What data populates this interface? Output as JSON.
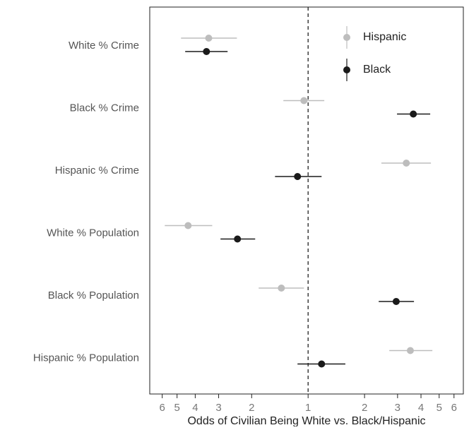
{
  "chart_data": {
    "type": "dot-whisker",
    "categories": [
      "White % Crime",
      "Black % Crime",
      "Hispanic % Crime",
      "White % Population",
      "Black % Population",
      "Hispanic % Population"
    ],
    "series": [
      {
        "name": "Hispanic",
        "color": "#bdbdbd",
        "values": [
          0.295,
          0.95,
          3.34,
          0.229,
          0.72,
          3.51
        ],
        "lower": [
          0.21,
          0.738,
          2.46,
          0.172,
          0.545,
          2.71
        ],
        "upper": [
          0.417,
          1.22,
          4.52,
          0.308,
          0.95,
          4.6
        ]
      },
      {
        "name": "Black",
        "color": "#1a1a1a",
        "values": [
          0.287,
          3.64,
          0.878,
          0.42,
          2.95,
          1.18
        ],
        "lower": [
          0.221,
          2.98,
          0.666,
          0.341,
          2.38,
          0.878
        ],
        "upper": [
          0.372,
          4.48,
          1.18,
          0.522,
          3.67,
          1.58
        ]
      }
    ],
    "x_label": "Odds of Civilian Being White vs. Black/Hispanic",
    "xscale": "log",
    "xlim": [
      0.143,
      6.73
    ],
    "xticks": [
      {
        "value": 0.1667,
        "label": "6"
      },
      {
        "value": 0.2,
        "label": "5"
      },
      {
        "value": 0.25,
        "label": "4"
      },
      {
        "value": 0.3333,
        "label": "3"
      },
      {
        "value": 0.5,
        "label": "2"
      },
      1,
      2,
      3,
      4,
      5,
      6
    ],
    "reference_line": 1,
    "legend": "top-right"
  }
}
